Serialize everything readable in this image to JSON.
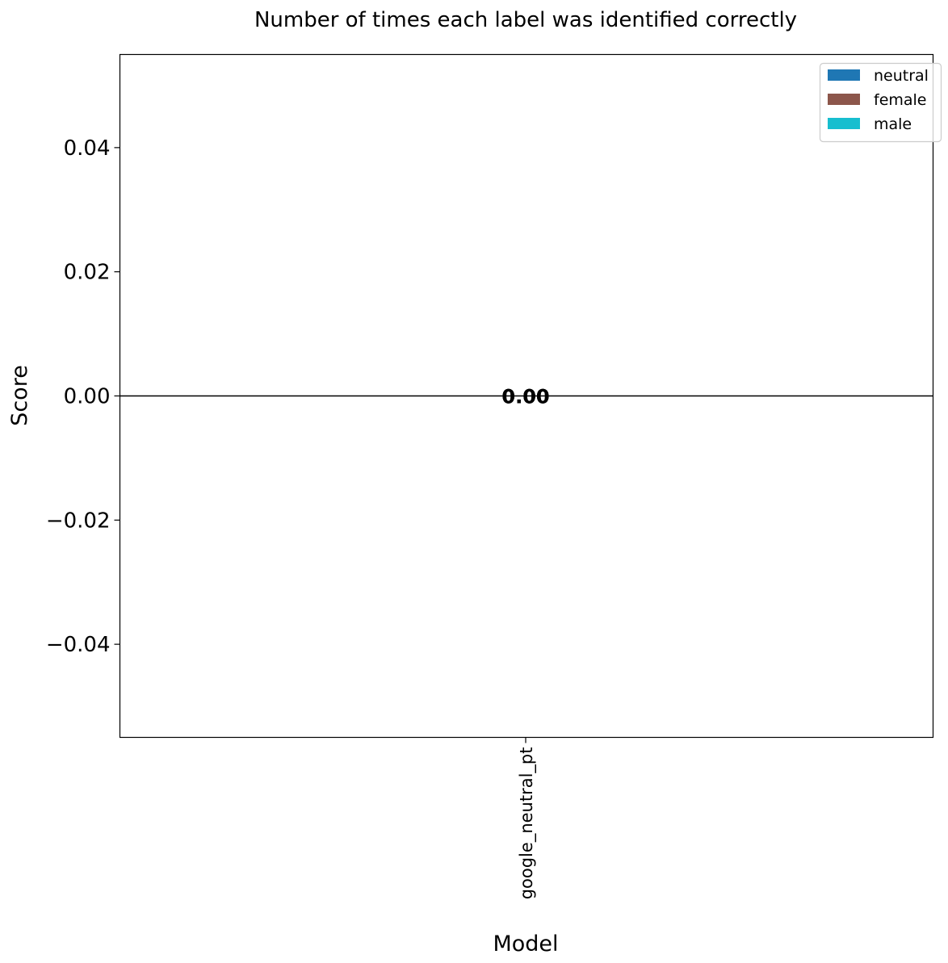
{
  "chart_data": {
    "type": "bar",
    "title": "Number of times each label was identified correctly",
    "xlabel": "Model",
    "ylabel": "Score",
    "categories": [
      "google_neutral_pt"
    ],
    "series": [
      {
        "name": "neutral",
        "values": [
          0.0
        ],
        "color": "#1f77b4"
      },
      {
        "name": "female",
        "values": [
          0.0
        ],
        "color": "#8c564b"
      },
      {
        "name": "male",
        "values": [
          0.0
        ],
        "color": "#17becf"
      }
    ],
    "data_labels": [
      "0.00",
      "0.00",
      "0.00"
    ],
    "ylim": [
      -0.055,
      0.055
    ],
    "yticks": [
      -0.04,
      -0.02,
      0.0,
      0.02,
      0.04
    ],
    "ytick_labels": [
      "−0.04",
      "−0.02",
      "0.00",
      "0.02",
      "0.04"
    ],
    "grid": false,
    "legend_position": "top-right",
    "zero_line": true
  }
}
